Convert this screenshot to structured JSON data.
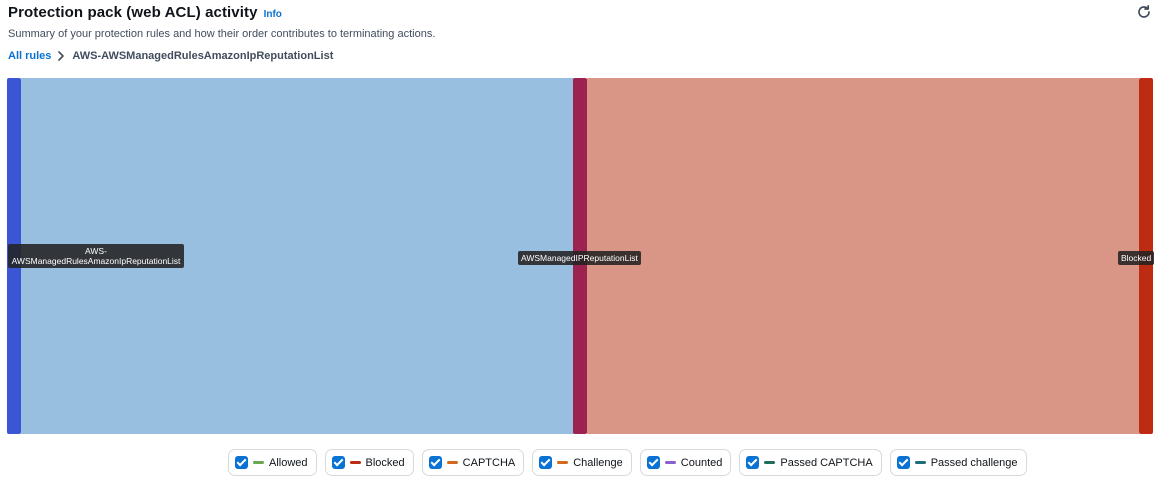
{
  "header": {
    "title": "Protection pack (web ACL) activity",
    "info": "Info",
    "subtitle": "Summary of your protection rules and how their order contributes to terminating actions."
  },
  "breadcrumb": {
    "root": "All rules",
    "current": "AWS-AWSManagedRulesAmazonIpReputationList"
  },
  "sankey": {
    "nodes": [
      {
        "label_line1": "AWS-",
        "label_line2": "AWSManagedRulesAmazonIpReputationList",
        "color": "#3a56d4"
      },
      {
        "label": "AWSManagedIPReputationList",
        "color": "#9c2250"
      },
      {
        "label": "Blocked",
        "color": "#bd2b12"
      }
    ],
    "links": [
      {
        "from": "AWS-AWSManagedRulesAmazonIpReputationList",
        "to": "AWSManagedIPReputationList",
        "color": "#99bfe0"
      },
      {
        "from": "AWSManagedIPReputationList",
        "to": "Blocked",
        "color": "#d99585"
      }
    ]
  },
  "legend": [
    {
      "label": "Allowed",
      "color": "#69a84f"
    },
    {
      "label": "Blocked",
      "color": "#bd2b12"
    },
    {
      "label": "CAPTCHA",
      "color": "#d2691e"
    },
    {
      "label": "Challenge",
      "color": "#d2691e"
    },
    {
      "label": "Counted",
      "color": "#8b5fd0"
    },
    {
      "label": "Passed CAPTCHA",
      "color": "#1f6d5a"
    },
    {
      "label": "Passed challenge",
      "color": "#1f6d78"
    }
  ]
}
